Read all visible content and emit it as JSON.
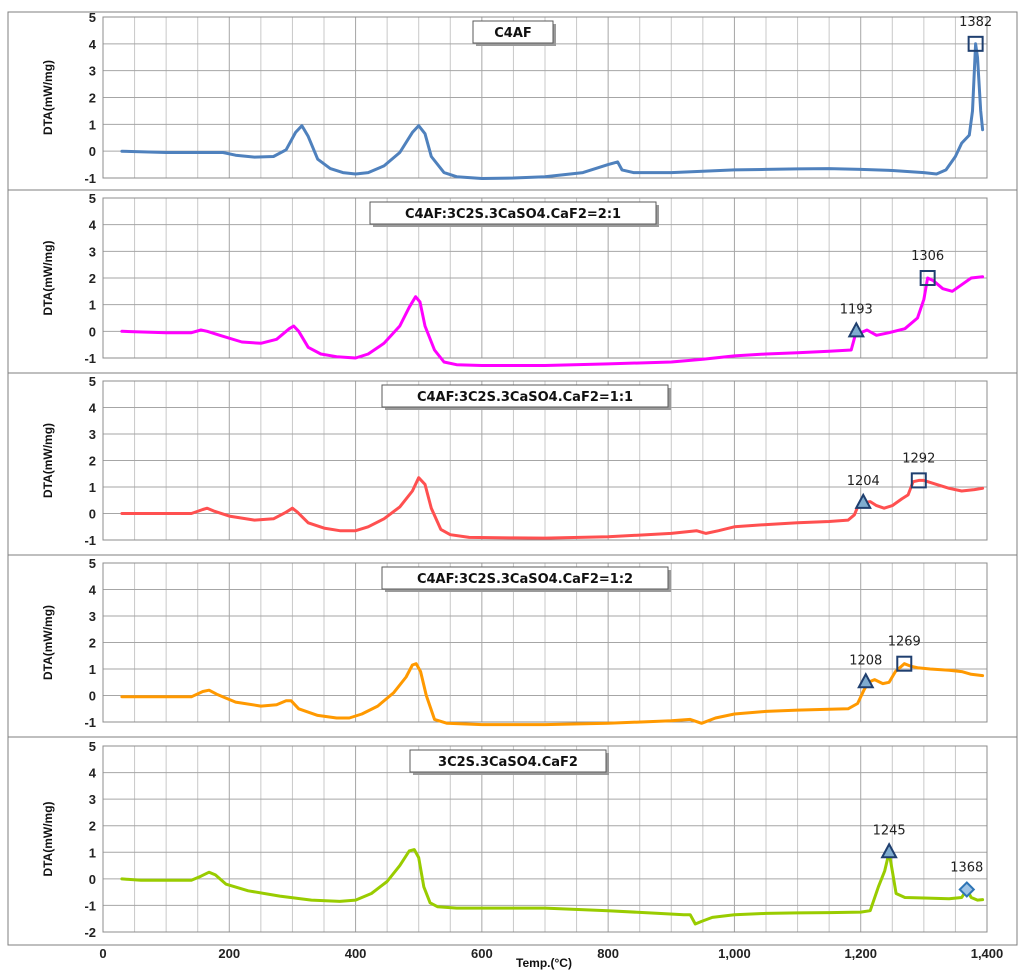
{
  "chart_data": {
    "type": "line",
    "x_axis": {
      "label": "Temp.(°C)",
      "range": [
        0,
        1400
      ],
      "ticks": [
        0,
        200,
        400,
        600,
        800,
        1000,
        1200,
        1400
      ],
      "tick_labels": [
        "0",
        "200",
        "400",
        "600",
        "800",
        "1,000",
        "1,200",
        "1,400"
      ],
      "grid_step": 50
    },
    "panels": [
      {
        "title": "C4AF",
        "ylabel": "DTA(mW/mg)",
        "ylim": [
          -1,
          5
        ],
        "y_ticks": [
          -1,
          0,
          1,
          2,
          3,
          4,
          5
        ],
        "grid": true,
        "color": "#4f81bd",
        "points": [
          [
            30,
            0
          ],
          [
            100,
            -0.05
          ],
          [
            170,
            -0.05
          ],
          [
            190,
            -0.05
          ],
          [
            210,
            -0.15
          ],
          [
            240,
            -0.22
          ],
          [
            270,
            -0.2
          ],
          [
            290,
            0.05
          ],
          [
            305,
            0.7
          ],
          [
            315,
            0.95
          ],
          [
            325,
            0.55
          ],
          [
            340,
            -0.3
          ],
          [
            360,
            -0.65
          ],
          [
            380,
            -0.8
          ],
          [
            400,
            -0.85
          ],
          [
            420,
            -0.8
          ],
          [
            445,
            -0.55
          ],
          [
            470,
            -0.05
          ],
          [
            490,
            0.7
          ],
          [
            500,
            0.95
          ],
          [
            510,
            0.65
          ],
          [
            520,
            -0.2
          ],
          [
            540,
            -0.8
          ],
          [
            560,
            -0.95
          ],
          [
            600,
            -1.02
          ],
          [
            650,
            -1
          ],
          [
            700,
            -0.95
          ],
          [
            760,
            -0.8
          ],
          [
            800,
            -0.5
          ],
          [
            815,
            -0.4
          ],
          [
            822,
            -0.7
          ],
          [
            840,
            -0.8
          ],
          [
            900,
            -0.8
          ],
          [
            950,
            -0.75
          ],
          [
            1000,
            -0.7
          ],
          [
            1050,
            -0.68
          ],
          [
            1100,
            -0.66
          ],
          [
            1150,
            -0.65
          ],
          [
            1200,
            -0.68
          ],
          [
            1250,
            -0.72
          ],
          [
            1300,
            -0.8
          ],
          [
            1320,
            -0.85
          ],
          [
            1335,
            -0.7
          ],
          [
            1350,
            -0.2
          ],
          [
            1360,
            0.3
          ],
          [
            1372,
            0.6
          ],
          [
            1377,
            1.5
          ],
          [
            1382,
            4
          ],
          [
            1385,
            3.5
          ],
          [
            1390,
            1.5
          ],
          [
            1393,
            0.8
          ]
        ],
        "markers": [
          {
            "x": 1382,
            "y": 4,
            "shape": "square",
            "label": "1382"
          }
        ]
      },
      {
        "title": "C4AF:3C2S.3CaSO4.CaF2=2:1",
        "ylabel": "DTA(mW/mg)",
        "ylim": [
          -1,
          5
        ],
        "y_ticks": [
          -1,
          0,
          1,
          2,
          3,
          4,
          5
        ],
        "grid": true,
        "color": "#ff00ff",
        "points": [
          [
            30,
            0
          ],
          [
            100,
            -0.05
          ],
          [
            140,
            -0.05
          ],
          [
            155,
            0.05
          ],
          [
            165,
            0
          ],
          [
            185,
            -0.15
          ],
          [
            220,
            -0.4
          ],
          [
            250,
            -0.45
          ],
          [
            275,
            -0.3
          ],
          [
            295,
            0.1
          ],
          [
            302,
            0.2
          ],
          [
            310,
            0
          ],
          [
            325,
            -0.6
          ],
          [
            345,
            -0.85
          ],
          [
            370,
            -0.95
          ],
          [
            400,
            -1
          ],
          [
            420,
            -0.85
          ],
          [
            445,
            -0.45
          ],
          [
            470,
            0.2
          ],
          [
            485,
            0.9
          ],
          [
            495,
            1.3
          ],
          [
            502,
            1.1
          ],
          [
            510,
            0.2
          ],
          [
            525,
            -0.7
          ],
          [
            540,
            -1.15
          ],
          [
            560,
            -1.25
          ],
          [
            600,
            -1.28
          ],
          [
            700,
            -1.28
          ],
          [
            800,
            -1.22
          ],
          [
            900,
            -1.15
          ],
          [
            950,
            -1.05
          ],
          [
            1000,
            -0.92
          ],
          [
            1050,
            -0.85
          ],
          [
            1100,
            -0.8
          ],
          [
            1150,
            -0.75
          ],
          [
            1185,
            -0.7
          ],
          [
            1193,
            0
          ],
          [
            1200,
            -0.05
          ],
          [
            1210,
            0.05
          ],
          [
            1225,
            -0.15
          ],
          [
            1245,
            -0.05
          ],
          [
            1270,
            0.1
          ],
          [
            1290,
            0.5
          ],
          [
            1300,
            1.2
          ],
          [
            1306,
            2
          ],
          [
            1315,
            1.9
          ],
          [
            1330,
            1.6
          ],
          [
            1345,
            1.5
          ],
          [
            1360,
            1.75
          ],
          [
            1375,
            2
          ],
          [
            1393,
            2.05
          ]
        ],
        "markers": [
          {
            "x": 1193,
            "y": 0,
            "shape": "triangle",
            "label": "1193"
          },
          {
            "x": 1306,
            "y": 2,
            "shape": "square",
            "label": "1306"
          }
        ]
      },
      {
        "title": "C4AF:3C2S.3CaSO4.CaF2=1:1",
        "ylabel": "DTA(mW/mg)",
        "ylim": [
          -1,
          5
        ],
        "y_ticks": [
          -1,
          0,
          1,
          2,
          3,
          4,
          5
        ],
        "grid": true,
        "color": "#ff5050",
        "points": [
          [
            30,
            0
          ],
          [
            100,
            0
          ],
          [
            140,
            0
          ],
          [
            158,
            0.15
          ],
          [
            165,
            0.2
          ],
          [
            175,
            0.1
          ],
          [
            200,
            -0.1
          ],
          [
            240,
            -0.25
          ],
          [
            270,
            -0.2
          ],
          [
            290,
            0.05
          ],
          [
            300,
            0.2
          ],
          [
            308,
            0.05
          ],
          [
            325,
            -0.35
          ],
          [
            350,
            -0.55
          ],
          [
            375,
            -0.65
          ],
          [
            400,
            -0.65
          ],
          [
            420,
            -0.5
          ],
          [
            445,
            -0.2
          ],
          [
            470,
            0.25
          ],
          [
            490,
            0.85
          ],
          [
            500,
            1.35
          ],
          [
            510,
            1.1
          ],
          [
            520,
            0.2
          ],
          [
            535,
            -0.6
          ],
          [
            550,
            -0.8
          ],
          [
            580,
            -0.9
          ],
          [
            650,
            -0.92
          ],
          [
            700,
            -0.93
          ],
          [
            800,
            -0.88
          ],
          [
            900,
            -0.75
          ],
          [
            940,
            -0.65
          ],
          [
            955,
            -0.75
          ],
          [
            975,
            -0.65
          ],
          [
            1000,
            -0.5
          ],
          [
            1050,
            -0.42
          ],
          [
            1100,
            -0.35
          ],
          [
            1150,
            -0.3
          ],
          [
            1180,
            -0.25
          ],
          [
            1190,
            -0.05
          ],
          [
            1196,
            0.3
          ],
          [
            1204,
            0.4
          ],
          [
            1215,
            0.45
          ],
          [
            1225,
            0.3
          ],
          [
            1237,
            0.2
          ],
          [
            1250,
            0.3
          ],
          [
            1265,
            0.55
          ],
          [
            1275,
            0.7
          ],
          [
            1283,
            1.2
          ],
          [
            1292,
            1.25
          ],
          [
            1300,
            1.25
          ],
          [
            1320,
            1.1
          ],
          [
            1340,
            0.95
          ],
          [
            1360,
            0.85
          ],
          [
            1380,
            0.9
          ],
          [
            1393,
            0.95
          ]
        ],
        "markers": [
          {
            "x": 1204,
            "y": 0.4,
            "shape": "triangle",
            "label": "1204"
          },
          {
            "x": 1292,
            "y": 1.25,
            "shape": "square",
            "label": "1292"
          }
        ]
      },
      {
        "title": "C4AF:3C2S.3CaSO4.CaF2=1:2",
        "ylabel": "DTA(mW/mg)",
        "ylim": [
          -1,
          5
        ],
        "y_ticks": [
          -1,
          0,
          1,
          2,
          3,
          4,
          5
        ],
        "grid": true,
        "color": "#ff9900",
        "points": [
          [
            30,
            -0.05
          ],
          [
            100,
            -0.05
          ],
          [
            140,
            -0.05
          ],
          [
            158,
            0.15
          ],
          [
            168,
            0.2
          ],
          [
            180,
            0.05
          ],
          [
            210,
            -0.25
          ],
          [
            250,
            -0.4
          ],
          [
            275,
            -0.35
          ],
          [
            290,
            -0.2
          ],
          [
            298,
            -0.2
          ],
          [
            310,
            -0.5
          ],
          [
            340,
            -0.75
          ],
          [
            370,
            -0.85
          ],
          [
            390,
            -0.85
          ],
          [
            410,
            -0.7
          ],
          [
            435,
            -0.4
          ],
          [
            460,
            0.1
          ],
          [
            480,
            0.7
          ],
          [
            490,
            1.15
          ],
          [
            496,
            1.2
          ],
          [
            503,
            0.9
          ],
          [
            512,
            0
          ],
          [
            525,
            -0.9
          ],
          [
            545,
            -1.05
          ],
          [
            600,
            -1.1
          ],
          [
            700,
            -1.1
          ],
          [
            800,
            -1.05
          ],
          [
            900,
            -0.95
          ],
          [
            930,
            -0.9
          ],
          [
            948,
            -1.05
          ],
          [
            970,
            -0.85
          ],
          [
            1000,
            -0.7
          ],
          [
            1050,
            -0.6
          ],
          [
            1100,
            -0.55
          ],
          [
            1150,
            -0.52
          ],
          [
            1180,
            -0.5
          ],
          [
            1195,
            -0.3
          ],
          [
            1205,
            0.2
          ],
          [
            1212,
            0.5
          ],
          [
            1222,
            0.6
          ],
          [
            1235,
            0.45
          ],
          [
            1245,
            0.5
          ],
          [
            1255,
            0.9
          ],
          [
            1269,
            1.2
          ],
          [
            1280,
            1.1
          ],
          [
            1290,
            1.05
          ],
          [
            1310,
            1
          ],
          [
            1340,
            0.95
          ],
          [
            1360,
            0.9
          ],
          [
            1375,
            0.8
          ],
          [
            1393,
            0.75
          ]
        ],
        "markers": [
          {
            "x": 1208,
            "y": 0.5,
            "shape": "triangle",
            "label": "1208"
          },
          {
            "x": 1269,
            "y": 1.2,
            "shape": "square",
            "label": "1269"
          }
        ]
      },
      {
        "title": "3C2S.3CaSO4.CaF2",
        "ylabel": "DTA(mW/mg)",
        "ylim": [
          -2,
          5
        ],
        "y_ticks": [
          -2,
          -1,
          0,
          1,
          2,
          3,
          4,
          5
        ],
        "grid": true,
        "color": "#99cc00",
        "points": [
          [
            30,
            0
          ],
          [
            60,
            -0.05
          ],
          [
            100,
            -0.05
          ],
          [
            140,
            -0.05
          ],
          [
            155,
            0.1
          ],
          [
            168,
            0.25
          ],
          [
            178,
            0.15
          ],
          [
            195,
            -0.2
          ],
          [
            230,
            -0.45
          ],
          [
            280,
            -0.65
          ],
          [
            330,
            -0.8
          ],
          [
            375,
            -0.85
          ],
          [
            400,
            -0.8
          ],
          [
            425,
            -0.55
          ],
          [
            450,
            -0.1
          ],
          [
            470,
            0.5
          ],
          [
            485,
            1.05
          ],
          [
            493,
            1.1
          ],
          [
            500,
            0.8
          ],
          [
            508,
            -0.3
          ],
          [
            518,
            -0.9
          ],
          [
            530,
            -1.05
          ],
          [
            560,
            -1.1
          ],
          [
            700,
            -1.1
          ],
          [
            800,
            -1.2
          ],
          [
            880,
            -1.3
          ],
          [
            920,
            -1.35
          ],
          [
            930,
            -1.35
          ],
          [
            938,
            -1.7
          ],
          [
            948,
            -1.6
          ],
          [
            965,
            -1.45
          ],
          [
            1000,
            -1.35
          ],
          [
            1050,
            -1.3
          ],
          [
            1100,
            -1.28
          ],
          [
            1150,
            -1.27
          ],
          [
            1200,
            -1.25
          ],
          [
            1215,
            -1.2
          ],
          [
            1228,
            -0.3
          ],
          [
            1238,
            0.3
          ],
          [
            1245,
            1
          ],
          [
            1250,
            0.3
          ],
          [
            1256,
            -0.55
          ],
          [
            1270,
            -0.7
          ],
          [
            1300,
            -0.72
          ],
          [
            1340,
            -0.75
          ],
          [
            1360,
            -0.7
          ],
          [
            1368,
            -0.4
          ],
          [
            1375,
            -0.7
          ],
          [
            1385,
            -0.8
          ],
          [
            1393,
            -0.78
          ]
        ],
        "markers": [
          {
            "x": 1245,
            "y": 1,
            "shape": "triangle",
            "label": "1245"
          },
          {
            "x": 1368,
            "y": -0.4,
            "shape": "diamond",
            "label": "1368"
          }
        ]
      }
    ]
  }
}
